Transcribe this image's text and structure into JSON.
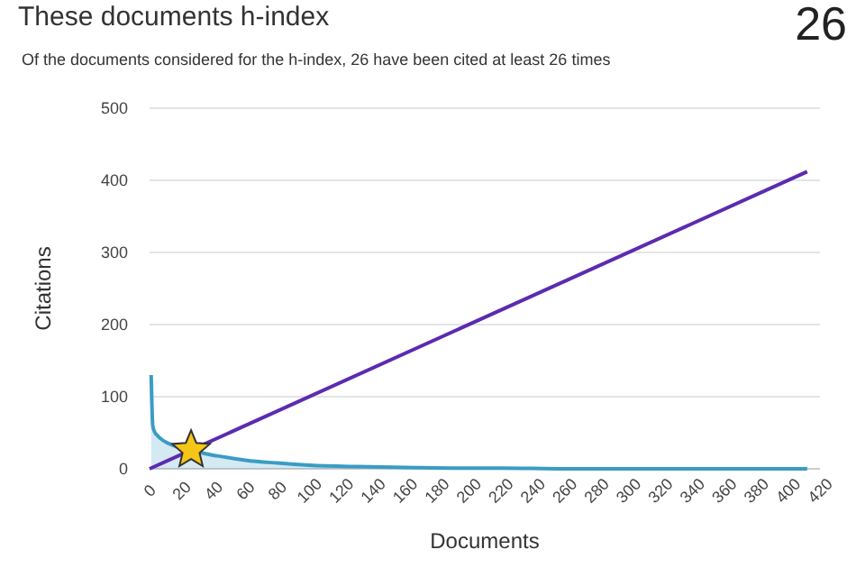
{
  "chart_data": {
    "type": "line",
    "title": "These documents h-index",
    "subtitle": "Of the documents considered for the h-index, 26 have been cited at least 26 times",
    "annotations": [
      "26"
    ],
    "xlabel": "Documents",
    "ylabel": "Citations",
    "xlim": [
      0,
      420
    ],
    "xticks": [
      0,
      20,
      40,
      60,
      80,
      100,
      120,
      140,
      160,
      180,
      200,
      220,
      240,
      260,
      280,
      300,
      320,
      340,
      360,
      380,
      400,
      420
    ],
    "ylim": [
      0,
      500
    ],
    "yticks": [
      0,
      100,
      200,
      300,
      400,
      500
    ],
    "grid": "y",
    "marker": "none",
    "series": [
      {
        "type": "area",
        "color": "#3a9cc4",
        "x": [
          1,
          2,
          3,
          5,
          8,
          12,
          18,
          26,
          35,
          45,
          60,
          80,
          100,
          130,
          160,
          200,
          220,
          260,
          320,
          412
        ],
        "values": [
          130,
          60,
          52,
          46,
          40,
          35,
          30,
          26,
          21,
          17,
          12,
          8,
          5,
          3,
          2,
          1,
          1,
          0,
          0,
          0
        ]
      },
      {
        "color": "#5b2bb0",
        "x": [
          0,
          412
        ],
        "values": [
          0,
          412
        ]
      },
      {
        "type": "scatter",
        "color": "#f5c518",
        "marker": "star",
        "x": [
          26
        ],
        "values": [
          26
        ]
      }
    ]
  }
}
